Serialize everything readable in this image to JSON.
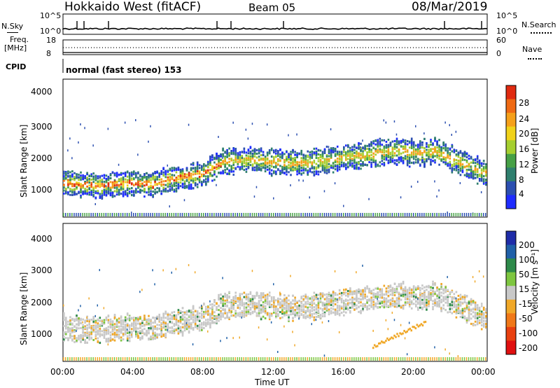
{
  "header": {
    "radar": "Hokkaido West (fitACF)",
    "beam": "Beam 05",
    "date": "08/Mar/2019"
  },
  "aux": {
    "nsky_label": "N.Sky",
    "nsearch_label": "N.Search",
    "noise_ticks_left": [
      "10^5",
      "10^0"
    ],
    "noise_ticks_right": [
      "10^5",
      "10^0"
    ],
    "freq_label": "Freq.",
    "freq_unit": "[MHz]",
    "freq_ticks": [
      "18",
      "8"
    ],
    "nave_label": "Nave",
    "nave_ticks": [
      "60",
      "0"
    ],
    "cpid_label": "CPID",
    "cpid_text": "normal (fast stereo) 153"
  },
  "chart_data": [
    {
      "type": "heatmap",
      "ylabel": "Slant Range [km]",
      "yticks": [
        "4000",
        "3000",
        "2000",
        "1000"
      ],
      "ylim": [
        200,
        4500
      ],
      "colorbar_label": "Power [dB]",
      "colorbar_ticks": [
        "28",
        "24",
        "20",
        "16",
        "12",
        "8",
        "4"
      ],
      "colorbar_colors": [
        "#1f2cff",
        "#2c4fb0",
        "#2f7f6e",
        "#46a046",
        "#a6cf30",
        "#f0d21a",
        "#f5a01a",
        "#ef6a14",
        "#e02a10"
      ],
      "echo_band_center_km": [
        [
          0,
          1300
        ],
        [
          1,
          1250
        ],
        [
          2,
          1200
        ],
        [
          3,
          1260
        ],
        [
          4,
          1300
        ],
        [
          5,
          1250
        ],
        [
          6,
          1400
        ],
        [
          7,
          1500
        ],
        [
          8,
          1600
        ],
        [
          9,
          1950
        ],
        [
          10,
          2000
        ],
        [
          11,
          2000
        ],
        [
          12,
          1950
        ],
        [
          13,
          1900
        ],
        [
          14,
          1950
        ],
        [
          15,
          2000
        ],
        [
          16,
          2100
        ],
        [
          17,
          2150
        ],
        [
          18,
          2250
        ],
        [
          19,
          2300
        ],
        [
          20,
          2200
        ],
        [
          21,
          2300
        ],
        [
          22,
          2050
        ],
        [
          23,
          1800
        ],
        [
          24,
          1550
        ]
      ]
    },
    {
      "type": "heatmap",
      "ylabel": "Slant Range [km]",
      "yticks": [
        "4000",
        "3000",
        "2000",
        "1000"
      ],
      "ylim": [
        200,
        4500
      ],
      "xlabel": "Time UT",
      "xticks": [
        "00:00",
        "04:00",
        "08:00",
        "12:00",
        "16:00",
        "20:00",
        "00:00"
      ],
      "colorbar_label": "Velocity [m s⁻¹]",
      "colorbar_ticks": [
        "200",
        "100",
        "50",
        "15",
        "-15",
        "-50",
        "-100",
        "-200"
      ],
      "colorbar_colors": [
        "#1f2ca8",
        "#2060a8",
        "#2e8a4a",
        "#7ec640",
        "#c8c8c8",
        "#f0a828",
        "#f07818",
        "#e84010",
        "#e01010"
      ]
    }
  ]
}
